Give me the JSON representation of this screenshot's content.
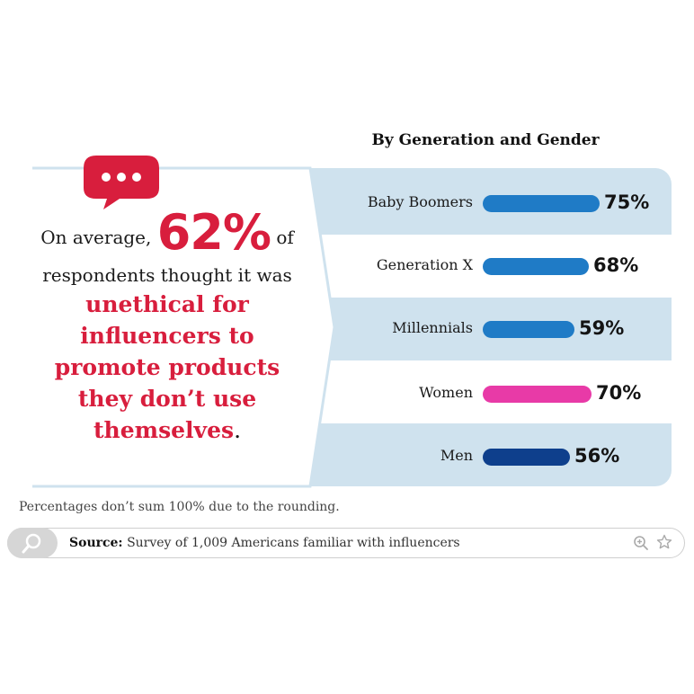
{
  "chart_data": {
    "type": "bar",
    "orientation": "horizontal",
    "title": "By Generation and Gender",
    "categories": [
      "Baby Boomers",
      "Generation X",
      "Millennials",
      "Women",
      "Men"
    ],
    "values": [
      75,
      68,
      59,
      70,
      56
    ],
    "value_labels": [
      "75%",
      "68%",
      "59%",
      "70%",
      "56%"
    ],
    "bar_colors": [
      "#1f7bc6",
      "#1f7bc6",
      "#1f7bc6",
      "#e83aa7",
      "#0e3f8c"
    ],
    "unit": "%"
  },
  "callout": {
    "prefix": "On average,",
    "highlight": "62%",
    "suffix": "of",
    "line2": "respondents thought it was",
    "red_lines": [
      "unethical for",
      "influencers to",
      "promote products",
      "they don’t use",
      "themselves"
    ],
    "end_punct": "."
  },
  "footnote": "Percentages don’t sum 100% due to the rounding.",
  "source": {
    "label": "Source:",
    "text": "Survey of 1,009 Americans familiar with influencers"
  },
  "icons": {
    "bubble": "speech-bubble-icon",
    "search": "search-icon",
    "zoom": "zoom-in-icon",
    "star": "star-icon"
  },
  "colors": {
    "accent_red": "#d81e3d",
    "panel_blue": "#cfe2ee"
  }
}
